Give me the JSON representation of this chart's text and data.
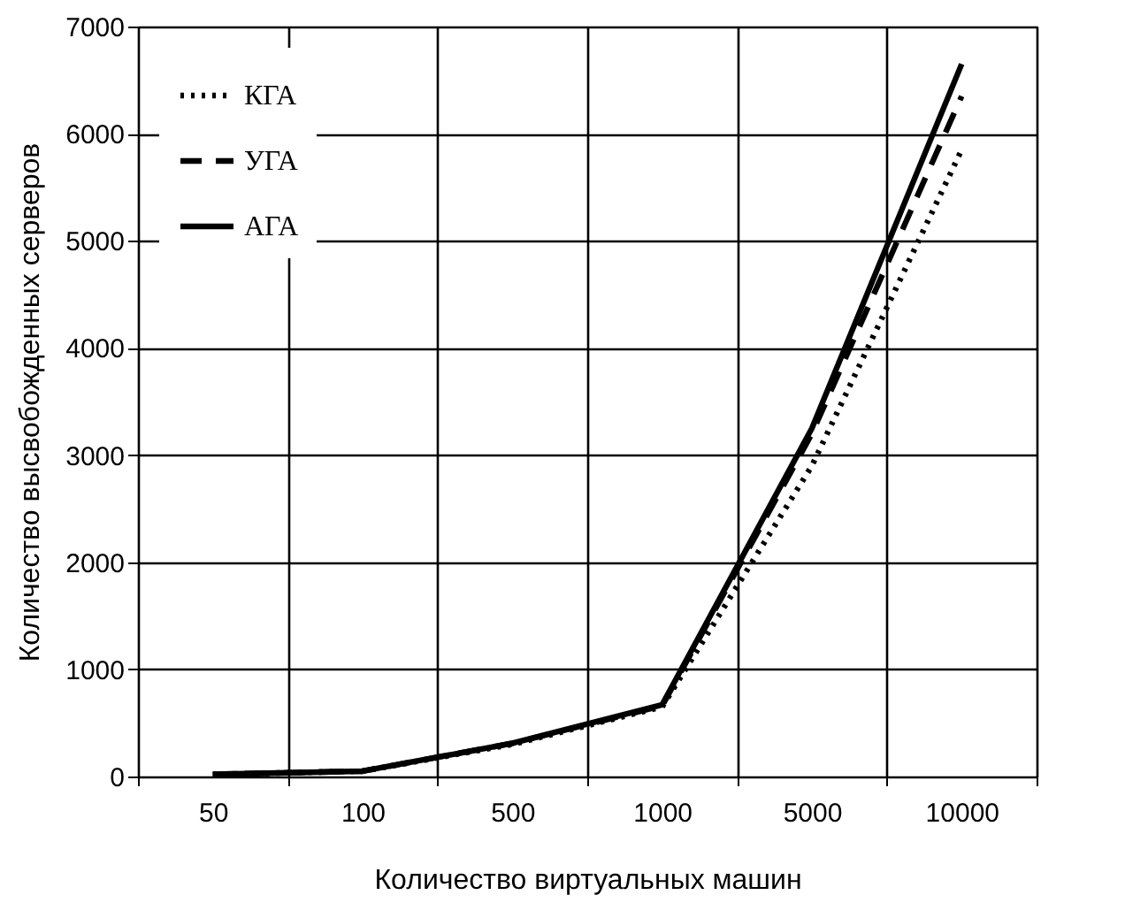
{
  "chart_data": {
    "type": "line",
    "xlabel": "Количество виртуальных машин",
    "ylabel": "Количество высвобожденных серверов",
    "categories": [
      "50",
      "100",
      "500",
      "1000",
      "5000",
      "10000"
    ],
    "series": [
      {
        "name": "КГА",
        "color": "#000000",
        "line_style": "dotted",
        "values": [
          20,
          50,
          300,
          650,
          2900,
          5850
        ]
      },
      {
        "name": "УГА",
        "color": "#000000",
        "line_style": "dashed",
        "values": [
          20,
          50,
          310,
          660,
          3200,
          6350
        ]
      },
      {
        "name": "АГА",
        "color": "#000000",
        "line_style": "solid",
        "values": [
          20,
          50,
          310,
          670,
          3250,
          6650
        ]
      }
    ],
    "ylim": [
      0,
      7000
    ],
    "yticks": [
      0,
      1000,
      2000,
      3000,
      4000,
      5000,
      6000,
      7000
    ],
    "grid": true,
    "legend": "top left",
    "marker": "none"
  }
}
